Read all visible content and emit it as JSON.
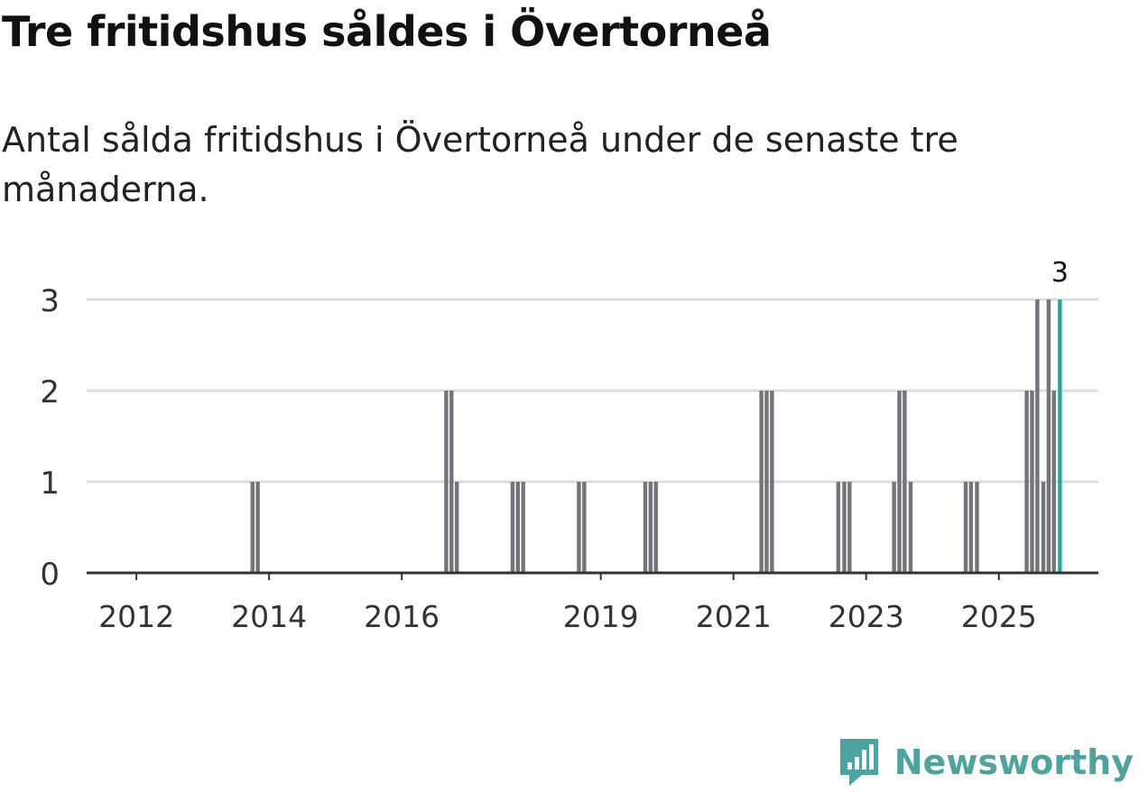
{
  "title": "Tre fritidshus såldes i Övertorneå",
  "subtitle": "Antal sålda fritidshus i Övertorneå under de senaste tre månaderna.",
  "brand": {
    "name": "Newsworthy",
    "icon": "newsworthy-logo-icon",
    "color": "#4da49f"
  },
  "chart_data": {
    "type": "bar",
    "title": "Tre fritidshus såldes i Övertorneå",
    "subtitle": "Antal sålda fritidshus i Övertorneå under de senaste tre månaderna.",
    "xlabel": "",
    "ylabel": "",
    "ylim": [
      0,
      3
    ],
    "yticks": [
      0,
      1,
      2,
      3
    ],
    "grid": true,
    "legend": "none",
    "x_range": [
      2011.25,
      2026.5
    ],
    "x_tick_positions": [
      2012,
      2014,
      2016,
      2019,
      2021,
      2023,
      2025
    ],
    "x_tick_labels": [
      "2012",
      "2014",
      "2016",
      "2019",
      "2021",
      "2023",
      "2025"
    ],
    "bar_color": "#74747a",
    "highlight_color": "#2aa39a",
    "bars": [
      {
        "x": 2013.75,
        "value": 1
      },
      {
        "x": 2013.83,
        "value": 1
      },
      {
        "x": 2016.67,
        "value": 2
      },
      {
        "x": 2016.75,
        "value": 2
      },
      {
        "x": 2016.83,
        "value": 1
      },
      {
        "x": 2017.67,
        "value": 1
      },
      {
        "x": 2017.75,
        "value": 1
      },
      {
        "x": 2017.83,
        "value": 1
      },
      {
        "x": 2018.67,
        "value": 1
      },
      {
        "x": 2018.75,
        "value": 1
      },
      {
        "x": 2019.67,
        "value": 1
      },
      {
        "x": 2019.75,
        "value": 1
      },
      {
        "x": 2019.83,
        "value": 1
      },
      {
        "x": 2021.42,
        "value": 2
      },
      {
        "x": 2021.5,
        "value": 2
      },
      {
        "x": 2021.58,
        "value": 2
      },
      {
        "x": 2022.58,
        "value": 1
      },
      {
        "x": 2022.67,
        "value": 1
      },
      {
        "x": 2022.75,
        "value": 1
      },
      {
        "x": 2023.42,
        "value": 1
      },
      {
        "x": 2023.5,
        "value": 2
      },
      {
        "x": 2023.58,
        "value": 2
      },
      {
        "x": 2023.67,
        "value": 1
      },
      {
        "x": 2024.5,
        "value": 1
      },
      {
        "x": 2024.58,
        "value": 1
      },
      {
        "x": 2024.67,
        "value": 1
      },
      {
        "x": 2025.42,
        "value": 2
      },
      {
        "x": 2025.5,
        "value": 2
      },
      {
        "x": 2025.58,
        "value": 3
      },
      {
        "x": 2025.67,
        "value": 1
      },
      {
        "x": 2025.75,
        "value": 3
      },
      {
        "x": 2025.83,
        "value": 2
      },
      {
        "x": 2025.92,
        "value": 3,
        "highlight": true,
        "label": "3"
      }
    ]
  }
}
